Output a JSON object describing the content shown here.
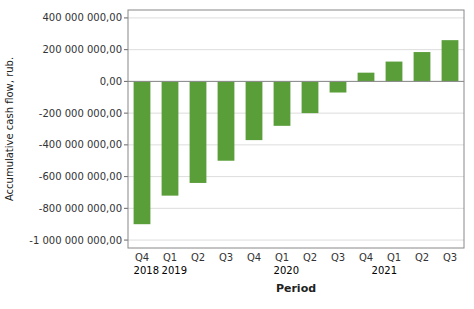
{
  "chart_data": {
    "type": "bar",
    "xlabel": "Period",
    "ylabel": "Accumulative cash flow, rub.",
    "categories": [
      "Q4",
      "Q1",
      "Q2",
      "Q3",
      "Q4",
      "Q1",
      "Q2",
      "Q3",
      "Q4",
      "Q1",
      "Q2",
      "Q3"
    ],
    "values": [
      -900000000,
      -720000000,
      -640000000,
      -500000000,
      -370000000,
      -280000000,
      -200000000,
      -70000000,
      55000000,
      125000000,
      185000000,
      260000000
    ],
    "color": "#5a9e3a",
    "ylim": [
      -1050000000,
      450000000
    ],
    "yticks": [
      {
        "value": -1000000000,
        "label": "-1 000 000 000,00"
      },
      {
        "value": -800000000,
        "label": "-800 000 000,00"
      },
      {
        "value": -600000000,
        "label": "-600 000 000,00"
      },
      {
        "value": -400000000,
        "label": "-400 000 000,00"
      },
      {
        "value": -200000000,
        "label": "-200 000 000,00"
      },
      {
        "value": 0,
        "label": "0,00"
      },
      {
        "value": 200000000,
        "label": "200 000 000,00"
      },
      {
        "value": 400000000,
        "label": "400 000 000,00"
      }
    ],
    "annotations": [
      {
        "text": "2018",
        "x": 0
      },
      {
        "text": "2019",
        "x": 1
      },
      {
        "text": "2020",
        "x": 5
      },
      {
        "text": "2021",
        "x": 8.5
      }
    ],
    "grid": true
  }
}
